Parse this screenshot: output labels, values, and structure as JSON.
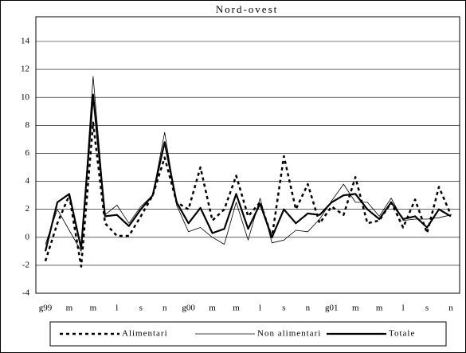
{
  "chart_data": {
    "type": "line",
    "title": "Nord-ovest",
    "categories": [
      "g99",
      null,
      "m",
      null,
      "m",
      null,
      "l",
      null,
      "s",
      null,
      "n",
      null,
      "g00",
      null,
      "m",
      null,
      "m",
      null,
      "l",
      null,
      "s",
      null,
      "n",
      null,
      "g01",
      null,
      "m",
      null,
      "m",
      null,
      "l",
      null,
      "s",
      null,
      "n"
    ],
    "series": [
      {
        "name": "Alimentari",
        "color": "#000000",
        "line_style": "dashed",
        "line_width": 2.5,
        "values": [
          -1.7,
          1.0,
          3.0,
          -2.1,
          8.2,
          1.0,
          0.1,
          0.1,
          1.5,
          3.0,
          5.7,
          2.5,
          2.0,
          5.0,
          1.2,
          2.0,
          4.4,
          1.5,
          2.5,
          0.0,
          5.8,
          2.0,
          3.8,
          1.0,
          2.2,
          1.6,
          4.3,
          1.0,
          1.2,
          2.5,
          0.7,
          2.7,
          0.3,
          3.6,
          1.6
        ]
      },
      {
        "name": "Non alimentari",
        "color": "#000000",
        "line_style": "solid",
        "line_width": 0.8,
        "values": [
          -0.5,
          2.0,
          0.5,
          -1.0,
          11.5,
          1.6,
          2.3,
          1.0,
          2.2,
          3.0,
          7.5,
          2.3,
          0.4,
          0.7,
          0.0,
          -0.5,
          2.5,
          -0.2,
          2.8,
          -0.4,
          -0.2,
          0.5,
          0.4,
          1.3,
          2.6,
          3.8,
          2.5,
          2.5,
          1.5,
          2.8,
          1.2,
          1.3,
          1.3,
          1.4,
          1.6
        ]
      },
      {
        "name": "Totale",
        "color": "#000000",
        "line_style": "solid",
        "line_width": 2.2,
        "values": [
          -1.0,
          2.5,
          3.1,
          -0.8,
          10.2,
          1.5,
          1.6,
          0.8,
          2.0,
          3.0,
          6.8,
          2.5,
          1.0,
          2.1,
          0.3,
          0.6,
          3.1,
          0.6,
          2.4,
          0.0,
          2.0,
          1.0,
          1.7,
          1.6,
          2.5,
          3.0,
          3.1,
          2.0,
          1.3,
          2.5,
          1.3,
          1.5,
          0.7,
          2.0,
          1.5
        ]
      }
    ],
    "ylim": [
      -4,
      14
    ],
    "yticks": [
      -4,
      -2,
      0,
      2,
      4,
      6,
      8,
      10,
      12,
      14
    ],
    "grid": true,
    "legend": "bottom"
  }
}
